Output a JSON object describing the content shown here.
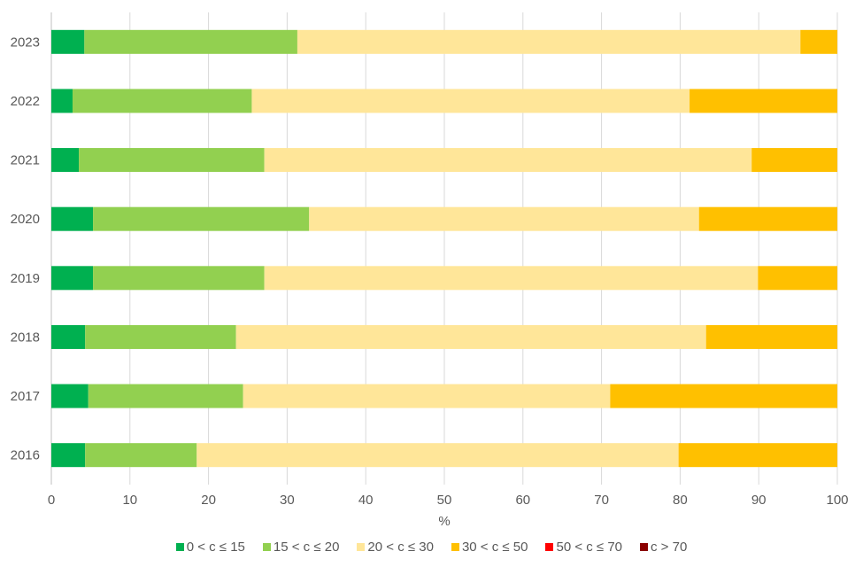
{
  "chart_data": {
    "type": "bar",
    "orientation": "horizontal",
    "stacked": true,
    "title": "",
    "xlabel": "%",
    "ylabel": "",
    "xlim": [
      0,
      100
    ],
    "xticks": [
      "0",
      "10",
      "20",
      "30",
      "40",
      "50",
      "60",
      "70",
      "80",
      "90",
      "100"
    ],
    "grid": true,
    "legend_position": "bottom",
    "categories": [
      "2023",
      "2022",
      "2021",
      "2020",
      "2019",
      "2018",
      "2017",
      "2016"
    ],
    "series": [
      {
        "name": "0 < c ≤ 15",
        "color": "#00B050",
        "values": [
          4.2,
          2.7,
          3.5,
          5.3,
          5.3,
          4.3,
          4.7,
          4.3
        ]
      },
      {
        "name": "15 < c ≤ 20",
        "color": "#92D050",
        "values": [
          27.1,
          22.8,
          23.6,
          27.5,
          21.8,
          19.2,
          19.7,
          14.2
        ]
      },
      {
        "name": "20 < c ≤ 30",
        "color": "#FFE699",
        "values": [
          64.0,
          55.7,
          62.0,
          49.6,
          62.8,
          59.8,
          46.7,
          61.3
        ]
      },
      {
        "name": "30 < c ≤ 50",
        "color": "#FFC000",
        "values": [
          4.7,
          18.8,
          10.9,
          17.6,
          10.1,
          16.7,
          28.9,
          20.2
        ]
      },
      {
        "name": "50 < c ≤ 70",
        "color": "#FF0000",
        "values": [
          0,
          0,
          0,
          0,
          0,
          0,
          0,
          0
        ]
      },
      {
        "name": "c > 70",
        "color": "#8B0000",
        "values": [
          0,
          0,
          0,
          0,
          0,
          0,
          0,
          0
        ]
      }
    ]
  }
}
